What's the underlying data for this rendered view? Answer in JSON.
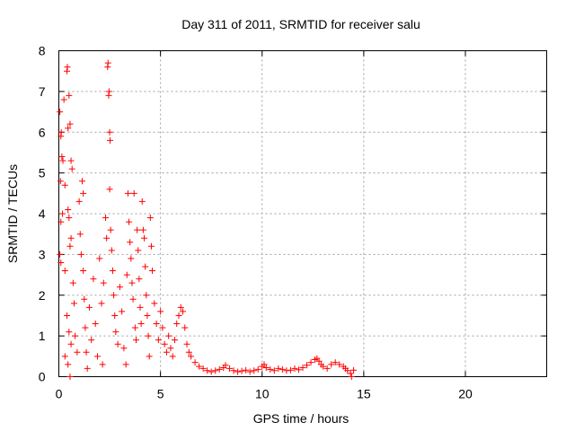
{
  "chart_data": {
    "type": "scatter",
    "title": "Day 311 of 2011, SRMTID for receiver salu",
    "xlabel": "GPS time / hours",
    "ylabel": "SRMTID / TECUs",
    "xlim": [
      0,
      24
    ],
    "ylim": [
      0,
      8
    ],
    "x_ticks": [
      0,
      5,
      10,
      15,
      20
    ],
    "y_ticks": [
      0,
      1,
      2,
      3,
      4,
      5,
      6,
      7,
      8
    ],
    "x_tick_labels": [
      "0",
      "5",
      "10",
      "15",
      "20"
    ],
    "y_tick_labels": [
      "0",
      "1",
      "2",
      "3",
      "4",
      "5",
      "6",
      "7",
      "8"
    ],
    "grid": true,
    "marker": "+",
    "color": "#ff0000",
    "series": [
      {
        "name": "SRMTID",
        "points": [
          [
            0.05,
            6.5
          ],
          [
            0.1,
            5.9
          ],
          [
            0.12,
            6.0
          ],
          [
            0.15,
            5.4
          ],
          [
            0.2,
            5.3
          ],
          [
            0.08,
            4.8
          ],
          [
            0.18,
            4.0
          ],
          [
            0.1,
            3.8
          ],
          [
            0.05,
            3.0
          ],
          [
            0.1,
            2.8
          ],
          [
            0.25,
            6.8
          ],
          [
            0.4,
            7.5
          ],
          [
            0.42,
            7.6
          ],
          [
            0.45,
            6.1
          ],
          [
            0.5,
            6.9
          ],
          [
            0.55,
            6.2
          ],
          [
            0.6,
            5.3
          ],
          [
            0.65,
            5.1
          ],
          [
            0.3,
            4.7
          ],
          [
            0.45,
            4.1
          ],
          [
            0.5,
            3.9
          ],
          [
            0.55,
            3.2
          ],
          [
            0.6,
            3.4
          ],
          [
            0.3,
            2.6
          ],
          [
            0.4,
            1.5
          ],
          [
            0.5,
            1.1
          ],
          [
            0.6,
            0.8
          ],
          [
            0.3,
            0.5
          ],
          [
            0.45,
            0.3
          ],
          [
            0.55,
            0.0
          ],
          [
            0.7,
            2.3
          ],
          [
            0.75,
            1.8
          ],
          [
            0.8,
            1.0
          ],
          [
            0.9,
            0.6
          ],
          [
            1.0,
            4.3
          ],
          [
            1.05,
            3.5
          ],
          [
            1.1,
            3.0
          ],
          [
            1.2,
            2.6
          ],
          [
            1.25,
            1.9
          ],
          [
            1.3,
            1.2
          ],
          [
            1.35,
            0.6
          ],
          [
            1.15,
            4.8
          ],
          [
            1.2,
            4.5
          ],
          [
            1.4,
            0.2
          ],
          [
            1.5,
            1.7
          ],
          [
            1.6,
            0.9
          ],
          [
            1.7,
            2.4
          ],
          [
            1.8,
            1.3
          ],
          [
            1.9,
            0.5
          ],
          [
            2.0,
            2.9
          ],
          [
            2.1,
            1.8
          ],
          [
            2.15,
            0.3
          ],
          [
            2.2,
            2.3
          ],
          [
            2.3,
            3.9
          ],
          [
            2.35,
            3.4
          ],
          [
            2.4,
            7.6
          ],
          [
            2.42,
            7.7
          ],
          [
            2.45,
            6.9
          ],
          [
            2.47,
            7.0
          ],
          [
            2.5,
            6.0
          ],
          [
            2.52,
            5.8
          ],
          [
            2.5,
            4.6
          ],
          [
            2.55,
            3.6
          ],
          [
            2.6,
            3.1
          ],
          [
            2.65,
            2.6
          ],
          [
            2.7,
            2.0
          ],
          [
            2.75,
            1.5
          ],
          [
            2.8,
            1.1
          ],
          [
            2.9,
            0.8
          ],
          [
            3.0,
            2.2
          ],
          [
            3.1,
            1.6
          ],
          [
            3.2,
            0.7
          ],
          [
            3.3,
            0.3
          ],
          [
            3.35,
            2.5
          ],
          [
            3.4,
            4.5
          ],
          [
            3.45,
            3.8
          ],
          [
            3.5,
            3.3
          ],
          [
            3.55,
            2.9
          ],
          [
            3.6,
            2.3
          ],
          [
            3.65,
            1.9
          ],
          [
            3.7,
            4.5
          ],
          [
            3.75,
            1.2
          ],
          [
            3.8,
            0.9
          ],
          [
            3.85,
            3.6
          ],
          [
            3.9,
            3.1
          ],
          [
            3.95,
            2.4
          ],
          [
            4.0,
            1.7
          ],
          [
            4.05,
            1.3
          ],
          [
            4.1,
            4.3
          ],
          [
            4.15,
            3.6
          ],
          [
            4.2,
            3.4
          ],
          [
            4.25,
            2.7
          ],
          [
            4.3,
            2.0
          ],
          [
            4.35,
            1.5
          ],
          [
            4.4,
            1.0
          ],
          [
            4.45,
            0.5
          ],
          [
            4.5,
            3.9
          ],
          [
            4.55,
            3.2
          ],
          [
            4.6,
            2.6
          ],
          [
            4.7,
            1.8
          ],
          [
            4.8,
            1.3
          ],
          [
            4.9,
            0.9
          ],
          [
            5.0,
            1.6
          ],
          [
            5.1,
            1.2
          ],
          [
            5.2,
            0.8
          ],
          [
            5.3,
            0.6
          ],
          [
            5.4,
            1.0
          ],
          [
            5.5,
            0.7
          ],
          [
            5.6,
            0.5
          ],
          [
            5.7,
            0.9
          ],
          [
            5.8,
            1.3
          ],
          [
            5.9,
            1.5
          ],
          [
            6.0,
            1.7
          ],
          [
            6.1,
            1.6
          ],
          [
            6.2,
            1.2
          ],
          [
            6.3,
            0.8
          ],
          [
            6.4,
            0.6
          ],
          [
            6.5,
            0.5
          ],
          [
            6.7,
            0.35
          ],
          [
            6.9,
            0.25
          ],
          [
            7.1,
            0.2
          ],
          [
            7.3,
            0.15
          ],
          [
            7.5,
            0.12
          ],
          [
            7.7,
            0.15
          ],
          [
            7.9,
            0.18
          ],
          [
            8.1,
            0.22
          ],
          [
            8.2,
            0.28
          ],
          [
            8.4,
            0.2
          ],
          [
            8.6,
            0.15
          ],
          [
            8.8,
            0.12
          ],
          [
            9.0,
            0.14
          ],
          [
            9.2,
            0.16
          ],
          [
            9.4,
            0.12
          ],
          [
            9.6,
            0.15
          ],
          [
            9.8,
            0.18
          ],
          [
            10.0,
            0.25
          ],
          [
            10.1,
            0.3
          ],
          [
            10.2,
            0.22
          ],
          [
            10.4,
            0.18
          ],
          [
            10.6,
            0.15
          ],
          [
            10.8,
            0.2
          ],
          [
            11.0,
            0.18
          ],
          [
            11.2,
            0.15
          ],
          [
            11.4,
            0.16
          ],
          [
            11.6,
            0.2
          ],
          [
            11.8,
            0.17
          ],
          [
            12.0,
            0.22
          ],
          [
            12.2,
            0.28
          ],
          [
            12.4,
            0.35
          ],
          [
            12.6,
            0.42
          ],
          [
            12.7,
            0.45
          ],
          [
            12.8,
            0.38
          ],
          [
            12.9,
            0.3
          ],
          [
            13.0,
            0.25
          ],
          [
            13.2,
            0.2
          ],
          [
            13.4,
            0.3
          ],
          [
            13.6,
            0.35
          ],
          [
            13.8,
            0.3
          ],
          [
            14.0,
            0.25
          ],
          [
            14.1,
            0.2
          ],
          [
            14.2,
            0.15
          ],
          [
            14.35,
            0.08
          ],
          [
            14.4,
            0.0
          ],
          [
            14.5,
            0.16
          ]
        ]
      }
    ]
  }
}
